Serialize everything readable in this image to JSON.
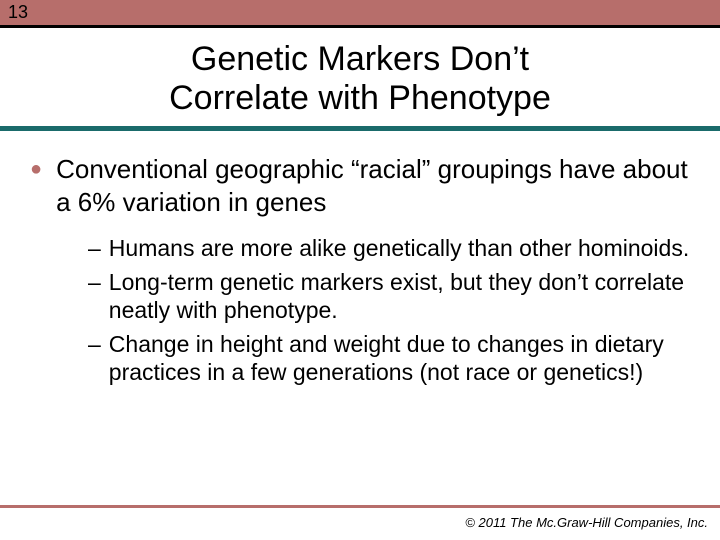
{
  "slide": {
    "number": "13",
    "title_line1": "Genetic Markers Don’t",
    "title_line2": "Correlate with Phenotype",
    "main_bullet": "Conventional geographic “racial” groupings have about a 6% variation in genes",
    "sub_bullets": [
      "Humans are more alike genetically than other hominoids.",
      "Long-term genetic markers exist, but they don’t correlate neatly with phenotype.",
      "Change in height and weight due to changes in dietary practices in a few generations (not race or genetics!)"
    ],
    "copyright": "© 2011 The Mc.Graw-Hill Companies, Inc."
  },
  "colors": {
    "banner": "#b76e6b",
    "rule_teal": "#1a6b6b",
    "rule_bottom": "#b76e6b",
    "bullet_marker": "#b76e6b",
    "text": "#000000",
    "background": "#ffffff"
  },
  "typography": {
    "title_fontsize": 34,
    "l1_fontsize": 26,
    "l2_fontsize": 23,
    "copyright_fontsize": 13,
    "font_family": "Arial"
  }
}
